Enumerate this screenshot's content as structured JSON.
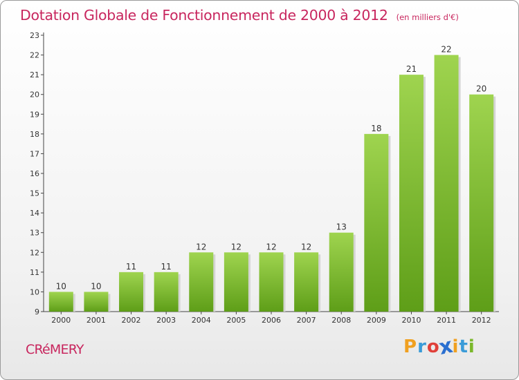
{
  "title": "Dotation Globale de Fonctionnement de 2000 à 2012",
  "subtitle": "(en milliers d'€)",
  "commune": "CRéMERY",
  "logo": {
    "text": "Proxiti",
    "letters": [
      "P",
      "r",
      "o",
      "x",
      "i",
      "t",
      "i"
    ],
    "colors": [
      "#f0a020",
      "#3a9bd8",
      "#e0403a",
      "#2a6fd0",
      "#f0a020",
      "#3a9bd8",
      "#7ab82a"
    ]
  },
  "colors": {
    "accent": "#c8265e",
    "bar_top": "#9fd44f",
    "bar_bottom": "#5e9e18"
  },
  "chart_data": {
    "type": "bar",
    "categories": [
      "2000",
      "2001",
      "2002",
      "2003",
      "2004",
      "2005",
      "2006",
      "2007",
      "2008",
      "2009",
      "2010",
      "2011",
      "2012"
    ],
    "values": [
      10,
      10,
      11,
      11,
      12,
      12,
      12,
      12,
      13,
      18,
      21,
      22,
      20
    ],
    "ylim": [
      9,
      23
    ],
    "yticks": [
      "9",
      "10",
      "11",
      "12",
      "13",
      "14",
      "15",
      "16",
      "17",
      "18",
      "19",
      "20",
      "21",
      "22",
      "23"
    ],
    "grid": false
  }
}
